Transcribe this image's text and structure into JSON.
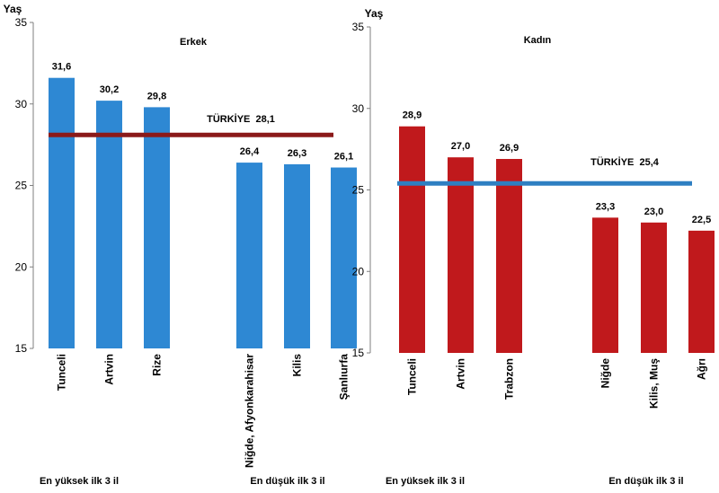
{
  "chart_data": [
    {
      "type": "bar",
      "title": "Erkek",
      "ylabel": "Yaş",
      "ylim": [
        15,
        35
      ],
      "yticks": [
        "15",
        "20",
        "25",
        "30",
        "35"
      ],
      "categories": [
        "Tunceli",
        "Artvin",
        "Rize",
        "Niğde, Afyonkarahisar",
        "Kilis",
        "Şanlıurfa"
      ],
      "values": [
        31.6,
        30.2,
        29.8,
        26.4,
        26.3,
        26.1
      ],
      "value_labels": [
        "31,6",
        "30,2",
        "29,8",
        "26,4",
        "26,3",
        "26,1"
      ],
      "bar_color": "#2E88D3",
      "reference": {
        "label": "TÜRKİYE  28,1",
        "value": 28.1,
        "color": "#8B1A1A"
      },
      "group_labels": [
        "En yüksek ilk 3 il",
        "En düşük ilk 3 il"
      ]
    },
    {
      "type": "bar",
      "title": "Kadın",
      "ylabel": "Yaş",
      "ylim": [
        15,
        35
      ],
      "yticks": [
        "15",
        "20",
        "25",
        "30",
        "35"
      ],
      "categories": [
        "Tunceli",
        "Artvin",
        "Trabzon",
        "Niğde",
        "Kilis, Muş",
        "Ağrı"
      ],
      "values": [
        28.9,
        27.0,
        26.9,
        23.3,
        23.0,
        22.5
      ],
      "value_labels": [
        "28,9",
        "27,0",
        "26,9",
        "23,3",
        "23,0",
        "22,5"
      ],
      "bar_color": "#C0191C",
      "reference": {
        "label": "TÜRKİYE  25,4",
        "value": 25.4,
        "color": "#2E7FC2"
      },
      "group_labels": [
        "En yüksek ilk 3 il",
        "En düşük ilk 3 il"
      ]
    }
  ]
}
